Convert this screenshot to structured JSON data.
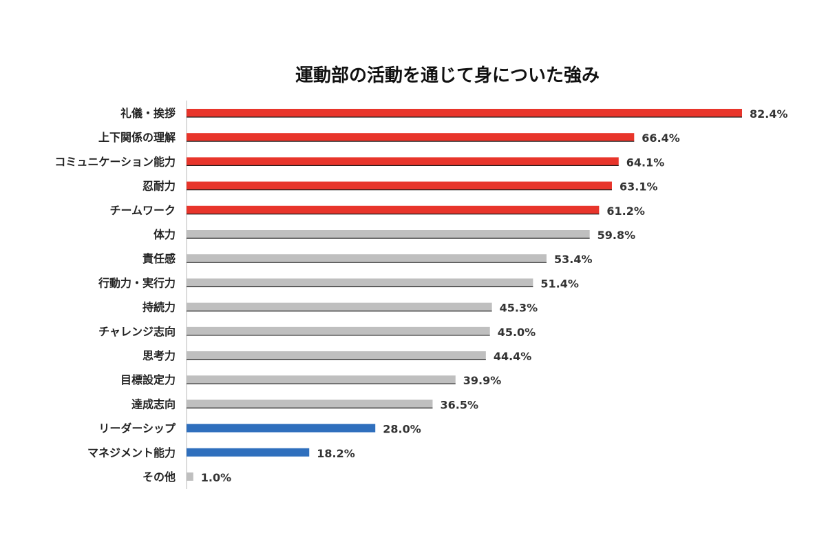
{
  "chart_data": {
    "type": "bar",
    "orientation": "horizontal",
    "title": "運動部の活動を通じて身についた強み",
    "xlim": [
      0,
      100
    ],
    "grid": false,
    "categories": [
      "礼儀・挨拶",
      "上下関係の理解",
      "コミュニケーション能力",
      "忍耐力",
      "チームワーク",
      "体力",
      "責任感",
      "行動力・実行力",
      "持続力",
      "チャレンジ志向",
      "思考力",
      "目標設定力",
      "達成志向",
      "リーダーシップ",
      "マネジメント能力",
      "その他"
    ],
    "values": [
      82.4,
      66.4,
      64.1,
      63.1,
      61.2,
      59.8,
      53.4,
      51.4,
      45.3,
      45.0,
      44.4,
      39.9,
      36.5,
      28.0,
      18.2,
      1.0
    ],
    "value_labels": [
      "82.4%",
      "66.4%",
      "64.1%",
      "63.1%",
      "61.2%",
      "59.8%",
      "53.4%",
      "51.4%",
      "45.3%",
      "45.0%",
      "44.4%",
      "39.9%",
      "36.5%",
      "28.0%",
      "18.2%",
      "1.0%"
    ],
    "bar_colors": [
      "#e8352b",
      "#e8352b",
      "#e8352b",
      "#e8352b",
      "#e8352b",
      "#bfbfbf",
      "#bfbfbf",
      "#bfbfbf",
      "#bfbfbf",
      "#bfbfbf",
      "#bfbfbf",
      "#bfbfbf",
      "#bfbfbf",
      "#2f6fbd",
      "#2f6fbd",
      "#bfbfbf"
    ],
    "underline_color": "#1a1a1a",
    "axis_color": "#d0d0d0"
  }
}
